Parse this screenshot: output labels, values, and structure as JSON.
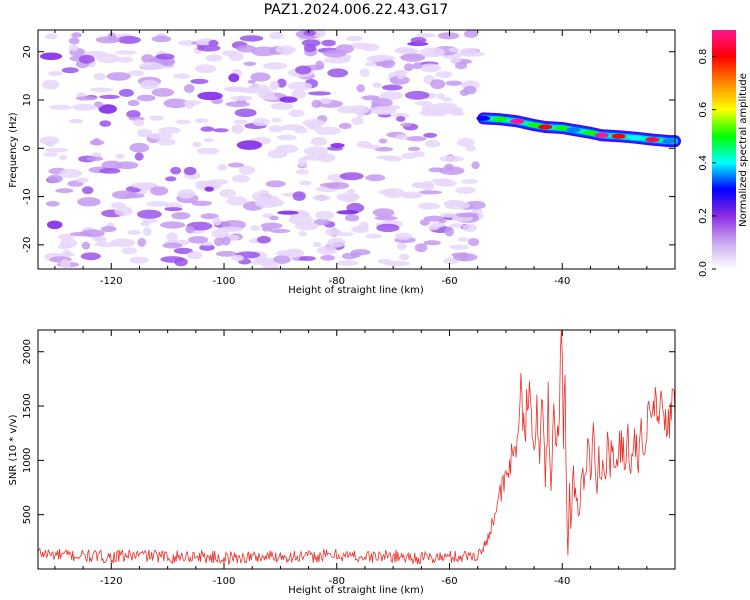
{
  "title": "PAZ1.2024.006.22.43.G17",
  "chart_data": [
    {
      "type": "heatmap",
      "xlabel": "Height of straight line (km)",
      "ylabel": "Frequency (Hz)",
      "xlim": [
        -133,
        -20
      ],
      "ylim": [
        -25,
        24.5
      ],
      "x_ticks": [
        -120,
        -100,
        -80,
        -60,
        -40
      ],
      "y_ticks": [
        -20,
        -10,
        0,
        10,
        20
      ],
      "colorbar": {
        "label": "Normalized spectral amplitude",
        "range": [
          0,
          0.9
        ],
        "ticks": [
          0.0,
          0.2,
          0.4,
          0.6,
          0.8
        ],
        "colormap": [
          "#ffffff",
          "#c9a7ef",
          "#8a2be2",
          "#0000ff",
          "#00ffff",
          "#00ff00",
          "#ffff00",
          "#ff8800",
          "#ff0000",
          "#ff1493"
        ]
      },
      "noise_region": {
        "x": [
          -131,
          -55
        ],
        "y": [
          -24.5,
          24
        ],
        "amplitude": [
          0.05,
          0.2
        ]
      },
      "signal_trace": [
        {
          "x": -54,
          "y": 6.2,
          "amplitude": 0.3
        },
        {
          "x": -51,
          "y": 6.0,
          "amplitude": 0.5
        },
        {
          "x": -48,
          "y": 5.6,
          "amplitude": 0.9
        },
        {
          "x": -45,
          "y": 4.8,
          "amplitude": 0.5
        },
        {
          "x": -43,
          "y": 4.4,
          "amplitude": 0.8
        },
        {
          "x": -40,
          "y": 4.2,
          "amplitude": 0.5
        },
        {
          "x": -38,
          "y": 3.8,
          "amplitude": 0.35
        },
        {
          "x": -35,
          "y": 3.2,
          "amplitude": 0.5
        },
        {
          "x": -33,
          "y": 2.7,
          "amplitude": 0.9
        },
        {
          "x": -30,
          "y": 2.5,
          "amplitude": 0.8
        },
        {
          "x": -27,
          "y": 2.2,
          "amplitude": 0.4
        },
        {
          "x": -24,
          "y": 1.8,
          "amplitude": 0.85
        },
        {
          "x": -21,
          "y": 1.5,
          "amplitude": 0.35
        }
      ]
    },
    {
      "type": "line",
      "xlabel": "Height of straight line (km)",
      "ylabel": "SNR (10 * v/v)",
      "xlim": [
        -133,
        -20
      ],
      "ylim": [
        0,
        2200
      ],
      "x_ticks": [
        -120,
        -100,
        -80,
        -60,
        -40
      ],
      "y_ticks": [
        500,
        1000,
        1500,
        2000
      ],
      "color": "#e8312a",
      "series": [
        {
          "x": [
            -133,
            -130,
            -125,
            -120,
            -115,
            -110,
            -105,
            -100,
            -95,
            -90,
            -85,
            -80,
            -75,
            -70,
            -65,
            -60,
            -57,
            -55,
            -54,
            -53,
            -52,
            -51,
            -50,
            -49,
            -48,
            -47.5,
            -47,
            -46,
            -45,
            -44.5,
            -44,
            -43.5,
            -43,
            -42.5,
            -42,
            -41.5,
            -41,
            -40.5,
            -40,
            -39.8,
            -39.5,
            -39.2,
            -39,
            -38.7,
            -38.5,
            -38,
            -37.5,
            -37,
            -36.5,
            -36,
            -35.5,
            -35,
            -34.5,
            -34,
            -33.5,
            -33,
            -32.5,
            -32,
            -31.5,
            -31,
            -30.5,
            -30,
            -29.5,
            -29,
            -28.5,
            -28,
            -27.5,
            -27,
            -26.5,
            -26,
            -25.5,
            -25,
            -24.5,
            -24,
            -23.5,
            -23,
            -22.5,
            -22,
            -21.5,
            -21,
            -20.5,
            -20
          ],
          "y": [
            150,
            130,
            120,
            110,
            130,
            110,
            120,
            100,
            110,
            120,
            110,
            130,
            110,
            120,
            100,
            110,
            120,
            130,
            180,
            320,
            520,
            680,
            820,
            1000,
            1200,
            1730,
            1200,
            1550,
            1200,
            1650,
            900,
            1550,
            800,
            1600,
            700,
            1500,
            1000,
            1700,
            2200,
            1000,
            1800,
            500,
            100,
            700,
            400,
            900,
            600,
            500,
            950,
            800,
            1150,
            900,
            1250,
            700,
            1050,
            950,
            850,
            1200,
            1000,
            1100,
            850,
            1000,
            1250,
            1050,
            1200,
            1100,
            1000,
            1150,
            900,
            1300,
            1000,
            1250,
            1350,
            1400,
            1550,
            1300,
            1500,
            1250,
            1400,
            1350,
            1500,
            1400
          ]
        }
      ]
    }
  ]
}
